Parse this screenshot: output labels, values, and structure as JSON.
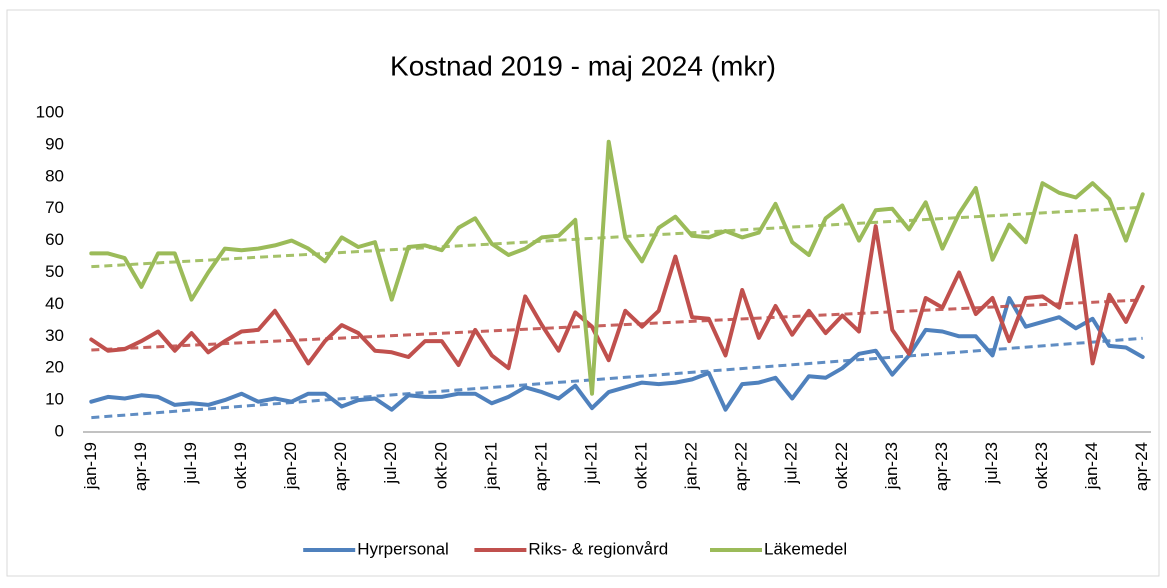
{
  "chart_data": {
    "type": "line",
    "title": "Kostnad 2019 - maj 2024 (mkr)",
    "categories": [
      "jan-19",
      null,
      null,
      "apr-19",
      null,
      null,
      "jul-19",
      null,
      null,
      "okt-19",
      null,
      null,
      "jan-20",
      null,
      null,
      "apr-20",
      null,
      null,
      "jul-20",
      null,
      null,
      "okt-20",
      null,
      null,
      "jan-21",
      null,
      null,
      "apr-21",
      null,
      null,
      "jul-21",
      null,
      null,
      "okt-21",
      null,
      null,
      "jan-22",
      null,
      null,
      "apr-22",
      null,
      null,
      "jul-22",
      null,
      null,
      "okt-22",
      null,
      null,
      "jan-23",
      null,
      null,
      "apr-23",
      null,
      null,
      "jul-23",
      null,
      null,
      "okt-23",
      null,
      null,
      "jan-24",
      null,
      null,
      "apr-24"
    ],
    "series": [
      {
        "name": "Hyrpersonal",
        "color": "#4f81bd",
        "trendline": true,
        "values": [
          9.5,
          11,
          10.5,
          11.5,
          11,
          8.5,
          9,
          8.5,
          10,
          12,
          9.5,
          10.5,
          9.5,
          12,
          12,
          8,
          10,
          10.5,
          7,
          11.5,
          11,
          11,
          12,
          12,
          9,
          11,
          14,
          12.5,
          10.5,
          14.5,
          7.5,
          12.5,
          14,
          15.5,
          15,
          15.5,
          16.5,
          18.5,
          7,
          15,
          15.5,
          17,
          10.5,
          17.5,
          17,
          20,
          24.5,
          25.5,
          18,
          24,
          32,
          31.5,
          30,
          30,
          24,
          42,
          33,
          34.5,
          36,
          32.5,
          35.5,
          27,
          26.5,
          23.5
        ]
      },
      {
        "name": "Riks- & regionvård",
        "color": "#c0504d",
        "trendline": true,
        "values": [
          29,
          25.5,
          26,
          28.5,
          31.5,
          25.5,
          31,
          25,
          28.5,
          31.5,
          32,
          38,
          30,
          21.5,
          28.5,
          33.5,
          31,
          25.5,
          25,
          23.5,
          28.5,
          28.5,
          21,
          32,
          24,
          20,
          42.5,
          33.5,
          25.5,
          37.5,
          33,
          22.5,
          38,
          33,
          38,
          55,
          36,
          35.5,
          24,
          44.5,
          29.5,
          39.5,
          30.5,
          38,
          31,
          36.5,
          31.5,
          64.5,
          32,
          24.5,
          42,
          39,
          50,
          37,
          42,
          28.5,
          42,
          42.5,
          39,
          61.5,
          21.5,
          43,
          34.5,
          45.5
        ]
      },
      {
        "name": "Läkemedel",
        "color": "#9bbb59",
        "trendline": true,
        "values": [
          56,
          56,
          54.5,
          45.5,
          56,
          56,
          41.5,
          50,
          57.5,
          57,
          57.5,
          58.5,
          60,
          57.5,
          53.5,
          61,
          58,
          59.5,
          41.5,
          58,
          58.5,
          57,
          64,
          67,
          59,
          55.5,
          57.5,
          61,
          61.5,
          66.5,
          12,
          91,
          61,
          53.5,
          64,
          67.5,
          61.5,
          61,
          63,
          61,
          62.5,
          71.5,
          59.5,
          55.5,
          67,
          71,
          60,
          69.5,
          70,
          63.5,
          72,
          57.5,
          68.5,
          76.5,
          54,
          65,
          59.5,
          78,
          75,
          73.5,
          78,
          73,
          60,
          74.5
        ]
      }
    ],
    "ylim": [
      0,
      100
    ],
    "yticks": [
      0,
      10,
      20,
      30,
      40,
      50,
      60,
      70,
      80,
      90,
      100
    ],
    "grid": false,
    "legend": "bottom"
  }
}
